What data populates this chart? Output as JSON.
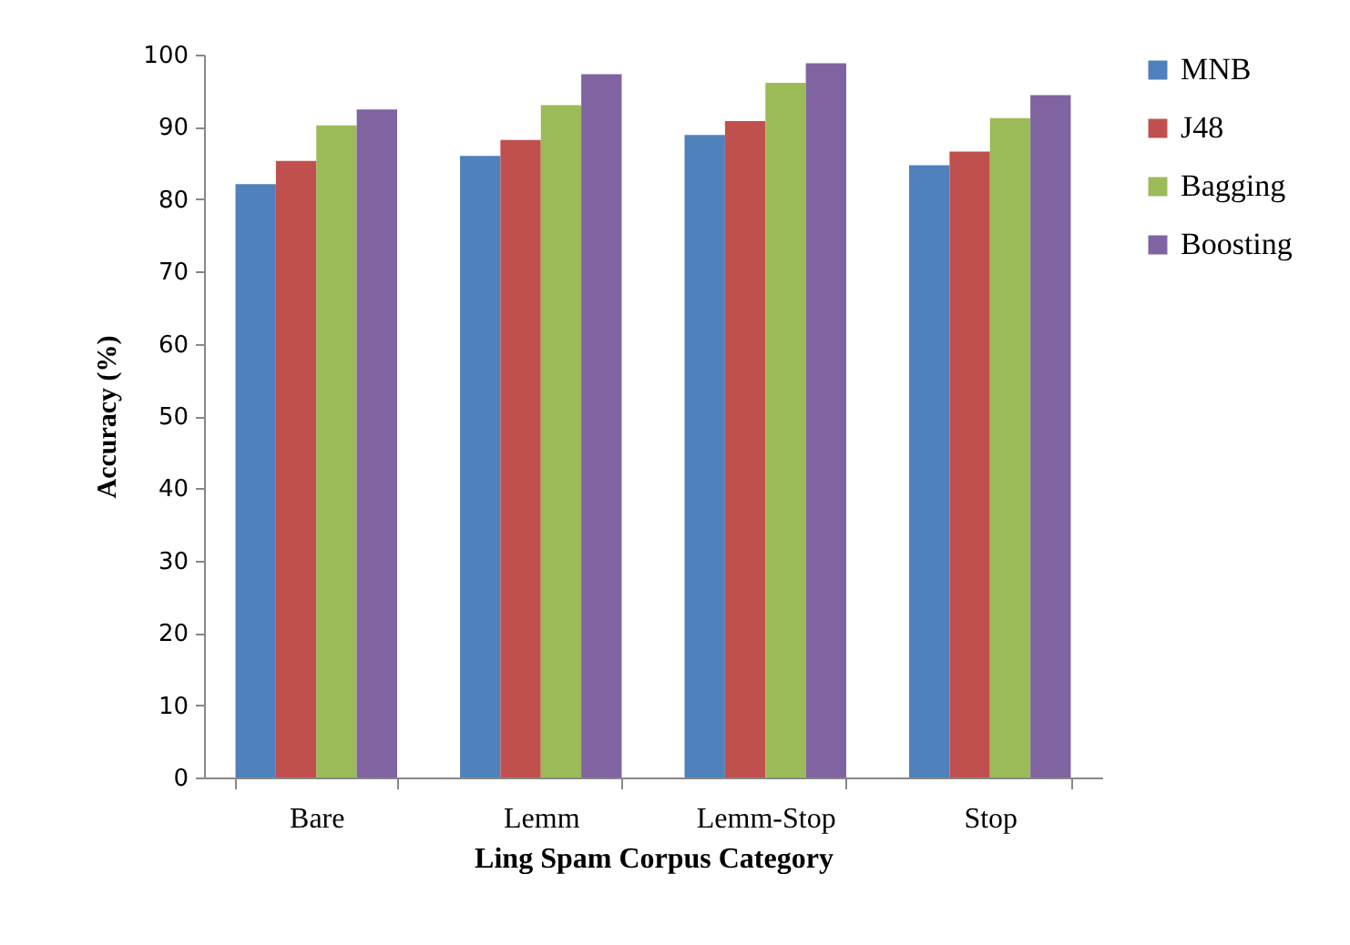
{
  "chart_data": {
    "type": "bar",
    "xlabel": "Ling Spam Corpus Category",
    "ylabel": "Accuracy (%)",
    "categories": [
      "Bare",
      "Lemm",
      "Lemm-Stop",
      "Stop"
    ],
    "series": [
      {
        "name": "MNB",
        "color": "#4f81bd",
        "values": [
          82.1,
          86.0,
          88.9,
          84.7
        ]
      },
      {
        "name": "J48",
        "color": "#c0504d",
        "values": [
          85.3,
          88.2,
          90.8,
          86.6
        ]
      },
      {
        "name": "Bagging",
        "color": "#9bbb59",
        "values": [
          90.2,
          93.0,
          96.1,
          91.2
        ]
      },
      {
        "name": "Boosting",
        "color": "#8064a2",
        "values": [
          92.4,
          97.3,
          98.8,
          94.4
        ]
      }
    ],
    "ylim": [
      0,
      100
    ],
    "yticks": [
      0,
      10,
      20,
      30,
      40,
      50,
      60,
      70,
      80,
      90,
      100
    ],
    "grid": false,
    "legend": "right"
  }
}
